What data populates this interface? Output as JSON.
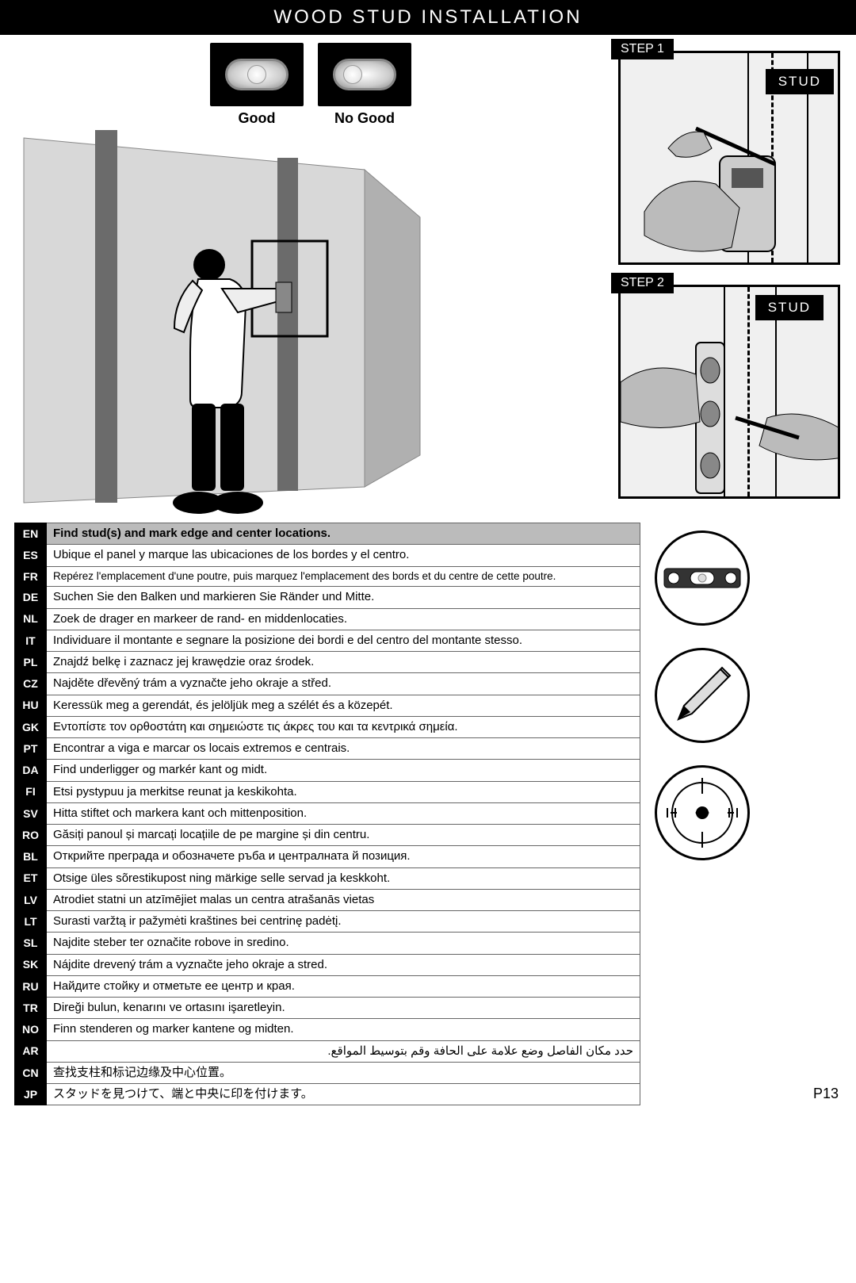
{
  "title": "WOOD STUD INSTALLATION",
  "bubble_levels": {
    "good_label": "Good",
    "nogood_label": "No Good"
  },
  "steps": {
    "step1_label": "STEP 1",
    "step1_stud": "STUD",
    "step2_label": "STEP 2",
    "step2_stud": "STUD"
  },
  "page_number": "P13",
  "instructions": [
    {
      "code": "EN",
      "text": "Find stud(s) and mark edge and center locations.",
      "highlight": true
    },
    {
      "code": "ES",
      "text": "Ubique el panel y marque las ubicaciones de los bordes y el centro."
    },
    {
      "code": "FR",
      "text": "Repérez l'emplacement d'une poutre, puis marquez l'emplacement des bords et du centre de cette poutre."
    },
    {
      "code": "DE",
      "text": "Suchen Sie den Balken und markieren Sie Ränder und Mitte."
    },
    {
      "code": "NL",
      "text": "Zoek de drager en markeer de rand- en middenlocaties."
    },
    {
      "code": "IT",
      "text": "Individuare il montante e segnare la posizione dei bordi e del centro del montante stesso."
    },
    {
      "code": "PL",
      "text": "Znajdź belkę i zaznacz jej krawędzie oraz środek."
    },
    {
      "code": "CZ",
      "text": "Najděte dřevěný trám a vyznačte jeho okraje a střed."
    },
    {
      "code": "HU",
      "text": "Keressük meg a gerendát, és jelöljük meg a szélét és a közepét."
    },
    {
      "code": "GK",
      "text": "Εντοπίστε τον ορθοστάτη και σημειώστε τις άκρες του και τα κεντρικά σημεία."
    },
    {
      "code": "PT",
      "text": "Encontrar a viga e marcar os locais extremos e centrais."
    },
    {
      "code": "DA",
      "text": "Find underligger og markér kant og midt."
    },
    {
      "code": "FI",
      "text": "Etsi pystypuu ja merkitse reunat ja keskikohta."
    },
    {
      "code": "SV",
      "text": "Hitta stiftet och markera kant och mittenposition."
    },
    {
      "code": "RO",
      "text": "Găsiți panoul și marcați locațiile de pe margine și din centru."
    },
    {
      "code": "BL",
      "text": "Открийте преграда и обозначете ръба и централната й позиция."
    },
    {
      "code": "ET",
      "text": "Otsige üles sõrestikupost ning märkige selle servad ja keskkoht."
    },
    {
      "code": "LV",
      "text": "Atrodiet statni un atzīmējiet malas un centra atrašanās vietas"
    },
    {
      "code": "LT",
      "text": "Surasti varžtą ir pažymėti kraštines bei centrinę padėtį."
    },
    {
      "code": "SL",
      "text": "Najdite steber ter označite robove in sredino."
    },
    {
      "code": "SK",
      "text": "Nájdite drevený trám a vyznačte jeho okraje a stred."
    },
    {
      "code": "RU",
      "text": "Найдите стойку и отметьте ее центр и края."
    },
    {
      "code": "TR",
      "text": "Direği bulun, kenarını ve ortasını işaretleyin."
    },
    {
      "code": "NO",
      "text": "Finn stenderen og marker kantene og midten."
    },
    {
      "code": "AR",
      "text": "حدد مكان الفاصل وضع علامة على الحافة وقم بتوسيط المواقع.",
      "rtl": true
    },
    {
      "code": "CN",
      "text": "查找支柱和标记边缘及中心位置。"
    },
    {
      "code": "JP",
      "text": "スタッドを見つけて、端と中央に印を付けます。"
    }
  ],
  "colors": {
    "black": "#000000",
    "white": "#ffffff",
    "highlight_row": "#bbbbbb",
    "border": "#666666",
    "wall_light": "#d8d8d8",
    "wall_dark": "#b5b5b5",
    "stud": "#6b6b6b"
  },
  "icons": [
    "level-icon",
    "pencil-icon",
    "studfinder-icon"
  ]
}
